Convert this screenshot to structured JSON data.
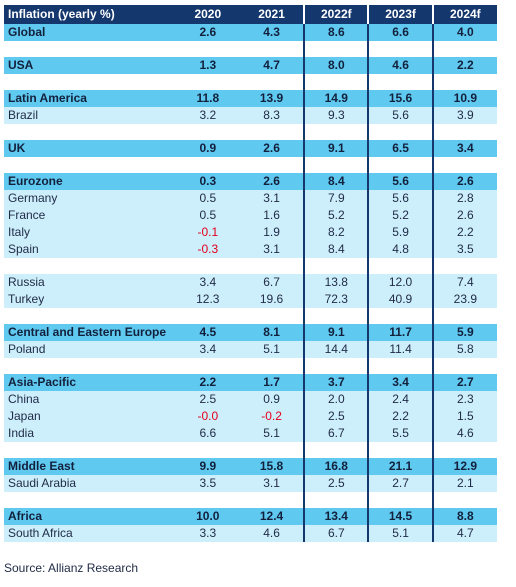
{
  "headers": [
    "Inflation (yearly %)",
    "2020",
    "2021",
    "2022f",
    "2023f",
    "2024f"
  ],
  "rows": [
    {
      "type": "region",
      "label": "Global",
      "v": [
        "2.6",
        "4.3",
        "8.6",
        "6.6",
        "4.0"
      ]
    },
    {
      "type": "gap"
    },
    {
      "type": "region",
      "label": "USA",
      "v": [
        "1.3",
        "4.7",
        "8.0",
        "4.6",
        "2.2"
      ]
    },
    {
      "type": "gap"
    },
    {
      "type": "region",
      "label": "Latin America",
      "v": [
        "11.8",
        "13.9",
        "14.9",
        "15.6",
        "10.9"
      ]
    },
    {
      "type": "country",
      "label": "Brazil",
      "v": [
        "3.2",
        "8.3",
        "9.3",
        "5.6",
        "3.9"
      ]
    },
    {
      "type": "gap"
    },
    {
      "type": "region",
      "label": "UK",
      "v": [
        "0.9",
        "2.6",
        "9.1",
        "6.5",
        "3.4"
      ]
    },
    {
      "type": "gap"
    },
    {
      "type": "region",
      "label": "Eurozone",
      "v": [
        "0.3",
        "2.6",
        "8.4",
        "5.6",
        "2.6"
      ]
    },
    {
      "type": "country",
      "label": "Germany",
      "v": [
        "0.5",
        "3.1",
        "7.9",
        "5.6",
        "2.8"
      ]
    },
    {
      "type": "country",
      "label": "France",
      "v": [
        "0.5",
        "1.6",
        "5.2",
        "5.2",
        "2.6"
      ]
    },
    {
      "type": "country",
      "label": "Italy",
      "v": [
        "-0.1",
        "1.9",
        "8.2",
        "5.9",
        "2.2"
      ]
    },
    {
      "type": "country",
      "label": "Spain",
      "v": [
        "-0.3",
        "3.1",
        "8.4",
        "4.8",
        "3.5"
      ]
    },
    {
      "type": "gap"
    },
    {
      "type": "country",
      "label": "Russia",
      "v": [
        "3.4",
        "6.7",
        "13.8",
        "12.0",
        "7.4"
      ]
    },
    {
      "type": "country",
      "label": "Turkey",
      "v": [
        "12.3",
        "19.6",
        "72.3",
        "40.9",
        "23.9"
      ]
    },
    {
      "type": "gap"
    },
    {
      "type": "region",
      "label": "Central and Eastern Europe",
      "v": [
        "4.5",
        "8.1",
        "9.1",
        "11.7",
        "5.9"
      ]
    },
    {
      "type": "country",
      "label": "Poland",
      "v": [
        "3.4",
        "5.1",
        "14.4",
        "11.4",
        "5.8"
      ]
    },
    {
      "type": "gap"
    },
    {
      "type": "region",
      "label": "Asia-Pacific",
      "v": [
        "2.2",
        "1.7",
        "3.7",
        "3.4",
        "2.7"
      ]
    },
    {
      "type": "country",
      "label": "China",
      "v": [
        "2.5",
        "0.9",
        "2.0",
        "2.4",
        "2.3"
      ]
    },
    {
      "type": "country",
      "label": "Japan",
      "v": [
        "-0.0",
        "-0.2",
        "2.5",
        "2.2",
        "1.5"
      ]
    },
    {
      "type": "country",
      "label": "India",
      "v": [
        "6.6",
        "5.1",
        "6.7",
        "5.5",
        "4.6"
      ]
    },
    {
      "type": "gap"
    },
    {
      "type": "region",
      "label": "Middle East",
      "v": [
        "9.9",
        "15.8",
        "16.8",
        "21.1",
        "12.9"
      ]
    },
    {
      "type": "country",
      "label": "Saudi Arabia",
      "v": [
        "3.5",
        "3.1",
        "2.5",
        "2.7",
        "2.1"
      ]
    },
    {
      "type": "gap"
    },
    {
      "type": "region",
      "label": "Africa",
      "v": [
        "10.0",
        "12.4",
        "13.4",
        "14.5",
        "8.8"
      ]
    },
    {
      "type": "country",
      "label": "South Africa",
      "v": [
        "3.3",
        "4.6",
        "6.7",
        "5.1",
        "4.7"
      ]
    }
  ],
  "colors": {
    "header": "#14376e",
    "region": "#5fc9f0",
    "country": "#cdeefb",
    "negative": "#e3001b"
  },
  "source": "Source: Allianz Research"
}
